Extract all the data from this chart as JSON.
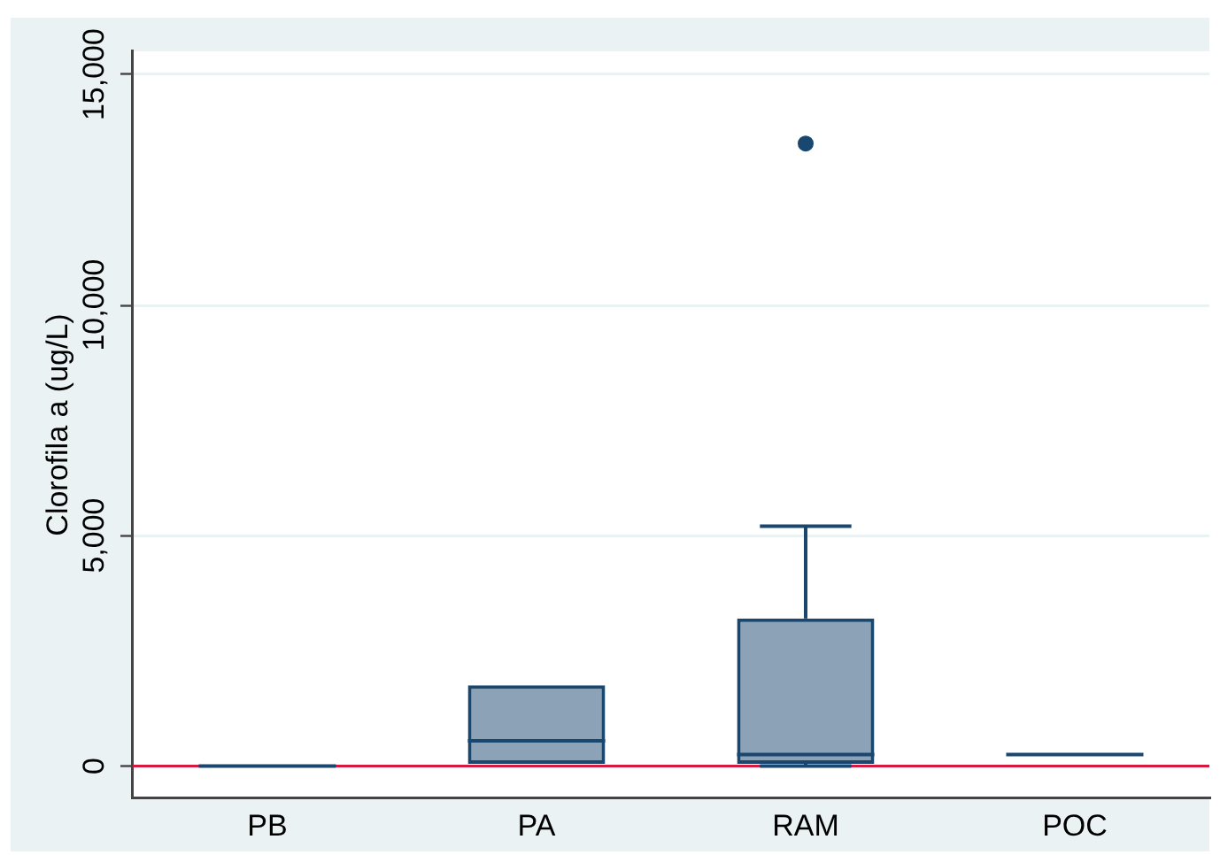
{
  "chart_data": {
    "type": "box",
    "ylabel": "Clorofila a (ug/L)",
    "categories": [
      "PB",
      "PA",
      "RAM",
      "POC"
    ],
    "color": "#1a476f",
    "boxes": [
      {
        "low": 0,
        "q1": 0,
        "median": 0,
        "q3": 0,
        "high": 0
      },
      {
        "low": 50,
        "q1": 50,
        "median": 550,
        "q3": 1750,
        "high": 1750
      },
      {
        "low": 0,
        "q1": 50,
        "median": 250,
        "q3": 3200,
        "high": 5200,
        "outliers": [
          13500
        ]
      },
      {
        "low": 250,
        "q1": 250,
        "median": 250,
        "q3": 250,
        "high": 250
      }
    ],
    "ylim": [
      -700,
      15500
    ],
    "yticks": [
      0,
      {
        "value": 5000,
        "label": "5,000"
      },
      {
        "value": 10000,
        "label": "10,000"
      },
      {
        "value": 15000,
        "label": "15,000"
      }
    ],
    "grid": "y",
    "marker": "circle",
    "ref_lines": [
      {
        "axis": "y",
        "value": 0,
        "color": "#d7193f"
      }
    ]
  }
}
